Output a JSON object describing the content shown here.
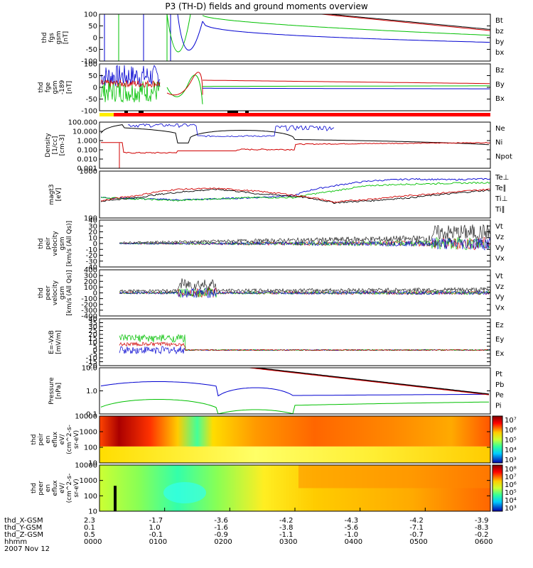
{
  "chart_data": {
    "type": "line",
    "title": "P3 (TH-D) fields and ground moments overview",
    "date": "2007 Nov 12",
    "x_time_labels": [
      "0000",
      "0100",
      "0200",
      "0300",
      "0400",
      "0500",
      "0600"
    ],
    "ephemeris": [
      {
        "label": "thd_X-GSM",
        "values": [
          "2.3",
          "-1.7",
          "-3.6",
          "-4.2",
          "-4.3",
          "-4.2",
          "-3.9"
        ]
      },
      {
        "label": "thd_Y-GSM",
        "values": [
          "0.1",
          "1.0",
          "-1.6",
          "-3.8",
          "-5.6",
          "-7.1",
          "-8.3"
        ]
      },
      {
        "label": "thd_Z-GSM",
        "values": [
          "0.5",
          "-0.1",
          "-0.9",
          "-1.1",
          "-1.0",
          "-0.7",
          "-0.2"
        ]
      },
      {
        "label": "hhmm",
        "values": [
          "0000",
          "0100",
          "0200",
          "0300",
          "0400",
          "0500",
          "0600"
        ]
      }
    ],
    "panels": [
      {
        "id": "fgs",
        "ylabel": [
          "thd",
          "fgs",
          "gsm",
          "[nT]"
        ],
        "yticks": [
          "100",
          "50",
          "0",
          "-50",
          "-100"
        ],
        "legend": [
          {
            "name": "Bt",
            "color": "#000000"
          },
          {
            "name": "bz",
            "color": "#d00000"
          },
          {
            "name": "by",
            "color": "#00c000"
          },
          {
            "name": "bx",
            "color": "#0000d0"
          }
        ]
      },
      {
        "id": "fge",
        "ylabel": [
          "thd",
          "fge",
          "gsm",
          "-189",
          "[nT]"
        ],
        "yticks": [
          "100",
          "50",
          "0",
          "-50",
          "-100"
        ],
        "legend": [
          {
            "name": "Bz",
            "color": "#d00000"
          },
          {
            "name": "By",
            "color": "#00c000"
          },
          {
            "name": "Bx",
            "color": "#0000d0"
          }
        ]
      },
      {
        "id": "density",
        "ylabel": [
          "Density",
          "[1/cc]",
          "[cm-3]"
        ],
        "yticks": [
          "100.000",
          "10.000",
          "1.000",
          "0.100",
          "0.010",
          "0.001"
        ],
        "legend": [
          {
            "name": "Ne",
            "color": "#d00000"
          },
          {
            "name": "Ni",
            "color": "#000000"
          },
          {
            "name": "Npot",
            "color": "#0000d0"
          }
        ]
      },
      {
        "id": "temp",
        "ylabel": [
          "magt3",
          "[eV]"
        ],
        "yticks": [
          "1000",
          "100"
        ],
        "legend": [
          {
            "name": "Te⊥",
            "color": "#d00000"
          },
          {
            "name": "Te∥",
            "color": "#000000"
          },
          {
            "name": "Ti⊥",
            "color": "#00c000"
          },
          {
            "name": "Ti∥",
            "color": "#00c000"
          }
        ]
      },
      {
        "id": "peir_vel",
        "ylabel": [
          "thd",
          "peir",
          "velocity",
          "gsm",
          "[km/s (All Qs)]"
        ],
        "yticks": [
          "40",
          "30",
          "20",
          "10",
          "0",
          "-10",
          "-20",
          "-30",
          "-40"
        ],
        "legend": [
          {
            "name": "Vt",
            "color": "#000000"
          },
          {
            "name": "Vz",
            "color": "#d00000"
          },
          {
            "name": "Vy",
            "color": "#00c000"
          },
          {
            "name": "Vx",
            "color": "#0000d0"
          }
        ]
      },
      {
        "id": "peer_vel",
        "ylabel": [
          "thd",
          "peer",
          "velocity",
          "gsm",
          "[km/s (All Qs)]"
        ],
        "yticks": [
          "400",
          "300",
          "200",
          "100",
          "0",
          "-100",
          "-200",
          "-300",
          "-400"
        ],
        "legend": [
          {
            "name": "Vt",
            "color": "#000000"
          },
          {
            "name": "Vz",
            "color": "#d00000"
          },
          {
            "name": "Vy",
            "color": "#00c000"
          },
          {
            "name": "Vx",
            "color": "#0000d0"
          }
        ]
      },
      {
        "id": "efield",
        "ylabel": [
          "E=-VxB",
          "[mV/m]"
        ],
        "yticks": [
          "40",
          "35",
          "30",
          "25",
          "20",
          "15",
          "10",
          "5",
          "0",
          "-5",
          "-10",
          "-15",
          "-20"
        ],
        "legend": [
          {
            "name": "Ez",
            "color": "#d00000"
          },
          {
            "name": "Ey",
            "color": "#00c000"
          },
          {
            "name": "Ex",
            "color": "#0000d0"
          }
        ]
      },
      {
        "id": "pressure",
        "ylabel": [
          "Pressure",
          "[nPa]"
        ],
        "yticks": [
          "10.0",
          "1.0",
          "0.1"
        ],
        "legend": [
          {
            "name": "Pt",
            "color": "#000000"
          },
          {
            "name": "Pb",
            "color": "#d00000"
          },
          {
            "name": "Pe",
            "color": "#00c000"
          },
          {
            "name": "Pi",
            "color": "#0000d0"
          }
        ]
      },
      {
        "id": "peir_spec",
        "ylabel": [
          "thd",
          "peir",
          "en",
          "eflux",
          "eV/",
          "(cm^2-s-",
          "sr-eV)"
        ],
        "yticks": [
          "10000",
          "1000",
          "100",
          "10"
        ],
        "colorbar": [
          "10⁷",
          "10⁶",
          "10⁵",
          "10⁴",
          "10³"
        ]
      },
      {
        "id": "peer_spec",
        "ylabel": [
          "thd",
          "peer",
          "en",
          "eflux",
          "eV/",
          "(cm^2-s-",
          "sr-eV)"
        ],
        "yticks": [
          "10000",
          "1000",
          "100",
          "10"
        ],
        "colorbar": [
          "10⁸",
          "10⁷",
          "10⁶",
          "10⁵",
          "10⁴",
          "10³"
        ]
      }
    ]
  }
}
